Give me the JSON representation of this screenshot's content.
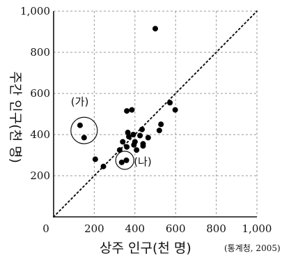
{
  "chart_data": {
    "type": "scatter",
    "xlabel": "상주 인구(천 명)",
    "ylabel": "주간 인구(천 명)",
    "source": "(통계청, 2005)",
    "xlim": [
      0,
      1000
    ],
    "ylim": [
      0,
      1000
    ],
    "x_tick_labels": [
      "0",
      "200",
      "400",
      "600",
      "800",
      "1,000"
    ],
    "y_tick_labels": [
      "200",
      "400",
      "600",
      "800",
      "1,000"
    ],
    "grid": true,
    "reference_line": {
      "style": "dotted",
      "from": [
        0,
        0
      ],
      "to": [
        1000,
        1000
      ]
    },
    "annotations": [
      {
        "label": "(가)",
        "circle_center": [
          150,
          420
        ]
      },
      {
        "label": "(나)",
        "circle_center": [
          350,
          275
        ]
      }
    ],
    "points": [
      {
        "x": 130,
        "y": 445
      },
      {
        "x": 150,
        "y": 385
      },
      {
        "x": 205,
        "y": 280
      },
      {
        "x": 245,
        "y": 245
      },
      {
        "x": 325,
        "y": 325
      },
      {
        "x": 335,
        "y": 265
      },
      {
        "x": 340,
        "y": 365
      },
      {
        "x": 358,
        "y": 275
      },
      {
        "x": 360,
        "y": 515
      },
      {
        "x": 360,
        "y": 340
      },
      {
        "x": 365,
        "y": 410
      },
      {
        "x": 370,
        "y": 390
      },
      {
        "x": 385,
        "y": 520
      },
      {
        "x": 392,
        "y": 400
      },
      {
        "x": 395,
        "y": 350
      },
      {
        "x": 400,
        "y": 365
      },
      {
        "x": 408,
        "y": 325
      },
      {
        "x": 425,
        "y": 395
      },
      {
        "x": 435,
        "y": 425
      },
      {
        "x": 440,
        "y": 355
      },
      {
        "x": 440,
        "y": 345
      },
      {
        "x": 465,
        "y": 385
      },
      {
        "x": 500,
        "y": 915
      },
      {
        "x": 520,
        "y": 420
      },
      {
        "x": 528,
        "y": 450
      },
      {
        "x": 572,
        "y": 555
      },
      {
        "x": 598,
        "y": 520
      }
    ]
  }
}
